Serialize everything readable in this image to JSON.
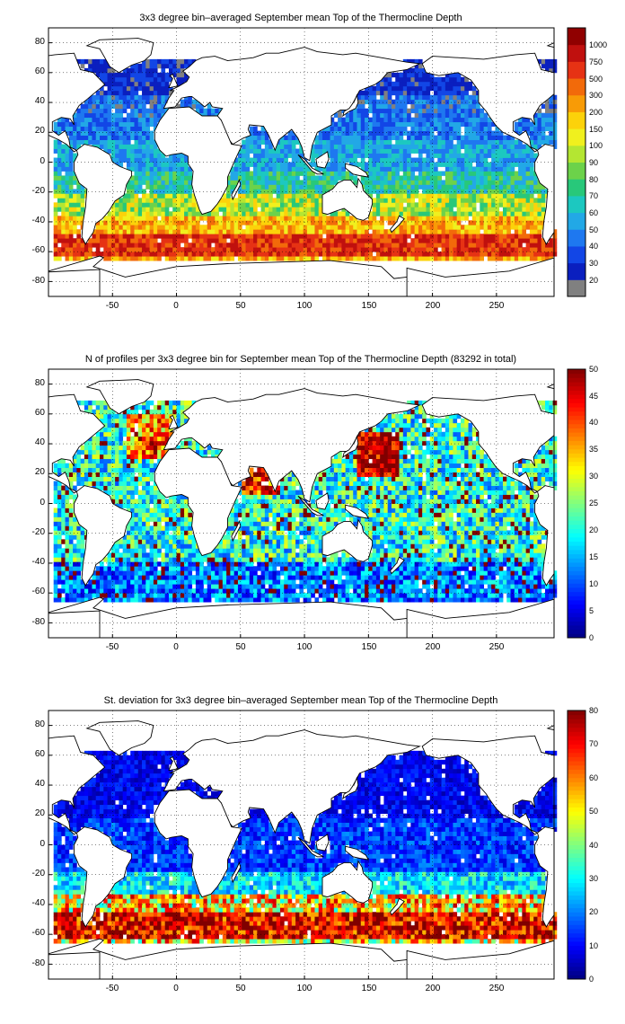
{
  "panels": [
    {
      "id": "mean",
      "title": "3x3 degree bin–averaged September mean Top of the Thermocline Depth",
      "x_ticks": [
        "-50",
        "0",
        "50",
        "100",
        "150",
        "200",
        "250"
      ],
      "y_ticks": [
        "80",
        "60",
        "40",
        "20",
        "0",
        "-20",
        "-40",
        "-60",
        "-80"
      ],
      "colorbar": {
        "scale": "categorical",
        "labels": [
          "20",
          "30",
          "40",
          "50",
          "60",
          "70",
          "80",
          "90",
          "100",
          "150",
          "200",
          "300",
          "500",
          "750",
          "1000"
        ],
        "colors": [
          "#808080",
          "#0a1fbf",
          "#1246e6",
          "#1e78f0",
          "#22a8e6",
          "#1cc8c0",
          "#28c87a",
          "#6cd24a",
          "#b4e632",
          "#f0f01e",
          "#fcd20a",
          "#f89b06",
          "#f26a0a",
          "#e63214",
          "#c0100e",
          "#900000"
        ]
      }
    },
    {
      "id": "count",
      "title": "N of profiles per 3x3 degree bin for September mean Top of the Thermocline Depth  (83292 in total)",
      "x_ticks": [
        "-50",
        "0",
        "50",
        "100",
        "150",
        "200",
        "250"
      ],
      "y_ticks": [
        "80",
        "60",
        "40",
        "20",
        "0",
        "-20",
        "-40",
        "-60",
        "-80"
      ],
      "colorbar": {
        "scale": "jet",
        "min": 0,
        "max": 50,
        "labels": [
          "0",
          "5",
          "10",
          "15",
          "20",
          "25",
          "30",
          "35",
          "40",
          "45",
          "50"
        ]
      }
    },
    {
      "id": "stdev",
      "title": "St. deviation for 3x3 degree bin–averaged September mean Top of the Thermocline Depth",
      "x_ticks": [
        "-50",
        "0",
        "50",
        "100",
        "150",
        "200",
        "250"
      ],
      "y_ticks": [
        "80",
        "60",
        "40",
        "20",
        "0",
        "-20",
        "-40",
        "-60",
        "-80"
      ],
      "colorbar": {
        "scale": "jet",
        "min": 0,
        "max": 80,
        "labels": [
          "0",
          "10",
          "20",
          "30",
          "40",
          "50",
          "60",
          "70",
          "80"
        ]
      }
    }
  ],
  "map": {
    "lon_range": [
      -100,
      295
    ],
    "lat_range": [
      -90,
      90
    ],
    "bin_size_deg": 3,
    "grid": "dotted",
    "no_data_color": "#ffffff"
  }
}
